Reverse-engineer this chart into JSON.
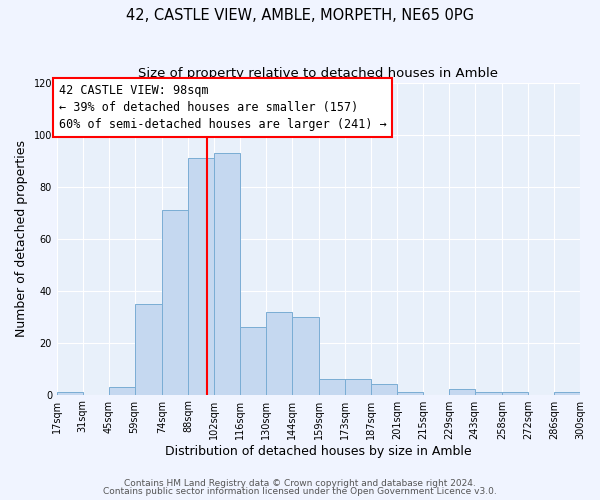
{
  "title1": "42, CASTLE VIEW, AMBLE, MORPETH, NE65 0PG",
  "title2": "Size of property relative to detached houses in Amble",
  "xlabel": "Distribution of detached houses by size in Amble",
  "ylabel": "Number of detached properties",
  "bar_color": "#c5d8f0",
  "bar_edge_color": "#7aadd4",
  "background_color": "#e8f0fa",
  "fig_background_color": "#f0f4ff",
  "grid_color": "#ffffff",
  "vline_x": 98,
  "vline_color": "red",
  "annotation_title": "42 CASTLE VIEW: 98sqm",
  "annotation_line1": "← 39% of detached houses are smaller (157)",
  "annotation_line2": "60% of semi-detached houses are larger (241) →",
  "annotation_box_color": "#ffffff",
  "annotation_box_edge": "red",
  "bin_edges": [
    17,
    31,
    45,
    59,
    74,
    88,
    102,
    116,
    130,
    144,
    159,
    173,
    187,
    201,
    215,
    229,
    243,
    258,
    272,
    286,
    300
  ],
  "bin_counts": [
    1,
    0,
    3,
    35,
    71,
    91,
    93,
    26,
    32,
    30,
    6,
    6,
    4,
    1,
    0,
    2,
    1,
    1,
    0,
    1
  ],
  "ylim": [
    0,
    120
  ],
  "yticks": [
    0,
    20,
    40,
    60,
    80,
    100,
    120
  ],
  "xtick_labels": [
    "17sqm",
    "31sqm",
    "45sqm",
    "59sqm",
    "74sqm",
    "88sqm",
    "102sqm",
    "116sqm",
    "130sqm",
    "144sqm",
    "159sqm",
    "173sqm",
    "187sqm",
    "201sqm",
    "215sqm",
    "229sqm",
    "243sqm",
    "258sqm",
    "272sqm",
    "286sqm",
    "300sqm"
  ],
  "footer1": "Contains HM Land Registry data © Crown copyright and database right 2024.",
  "footer2": "Contains public sector information licensed under the Open Government Licence v3.0.",
  "title_fontsize": 10.5,
  "subtitle_fontsize": 9.5,
  "axis_label_fontsize": 9,
  "tick_fontsize": 7,
  "annotation_fontsize": 8.5,
  "footer_fontsize": 6.5
}
